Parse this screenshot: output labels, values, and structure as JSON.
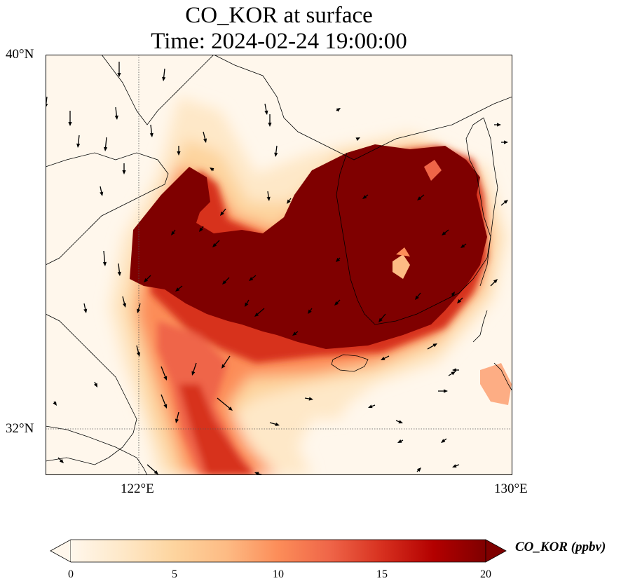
{
  "title": {
    "line1": "CO_KOR at surface",
    "line2": "Time: 2024-02-24 19:00:00"
  },
  "axes": {
    "lat_labels": [
      "40°N",
      "32°N"
    ],
    "lon_labels": [
      "122°E",
      "130°E"
    ],
    "lon_range": [
      120,
      130
    ],
    "lat_range": [
      31,
      40
    ],
    "gridlines": "dotted at 122°E and 32°N"
  },
  "colorbar": {
    "label": "CO_KOR (ppbv)",
    "ticks": [
      "0",
      "5",
      "10",
      "15",
      "20"
    ],
    "range": [
      0,
      20
    ],
    "extend": "both",
    "colormap": "OrRd",
    "colors": [
      "#fff7ec",
      "#fee8c8",
      "#fdd49e",
      "#fdbb84",
      "#fc8d59",
      "#ef6548",
      "#d7301f",
      "#b30000",
      "#7f0000"
    ]
  },
  "map_data": {
    "variable": "CO_KOR",
    "level": "surface",
    "units": "ppbv",
    "background_color": "#fff7ec",
    "plume_core_color": "#7f0000",
    "features": [
      "coastlines",
      "wind vectors"
    ]
  }
}
